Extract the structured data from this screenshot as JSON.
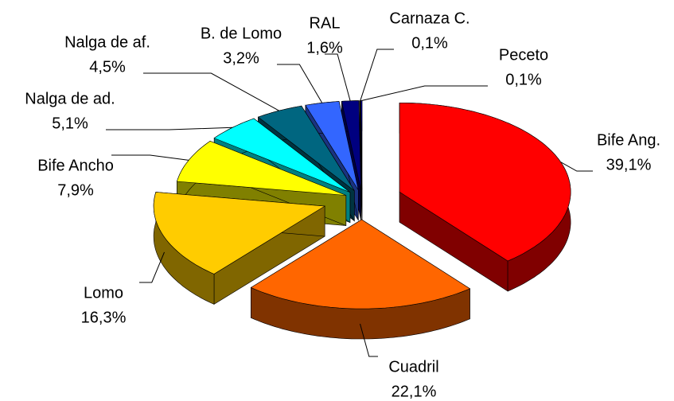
{
  "chart_data": {
    "type": "pie",
    "categories": [
      "Bife Ang.",
      "Cuadril",
      "Lomo",
      "Bife Ancho",
      "Nalga de ad.",
      "Nalga de af.",
      "B. de Lomo",
      "RAL",
      "Carnaza C.",
      "Peceto"
    ],
    "values": [
      39.1,
      22.1,
      16.3,
      7.9,
      5.1,
      4.5,
      3.2,
      1.6,
      0.1,
      0.1
    ],
    "value_labels": [
      "39,1%",
      "22,1%",
      "16,3%",
      "7,9%",
      "5,1%",
      "4,5%",
      "3,2%",
      "1,6%",
      "0,1%",
      "0,1%"
    ],
    "colors": [
      "#ff0000",
      "#ff6600",
      "#ffcc00",
      "#ffff00",
      "#00ffff",
      "#006680",
      "#3366ff",
      "#000080",
      "#000000",
      "#0000ff"
    ]
  }
}
